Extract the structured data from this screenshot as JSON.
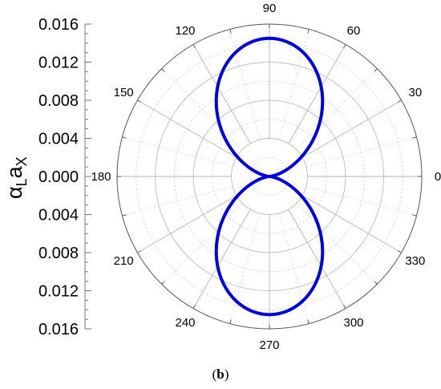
{
  "chart_data": {
    "type": "polar-line",
    "radial_axis": {
      "label_main": "α",
      "label_sub1": "L",
      "label_main2": "a",
      "label_sub2": "X",
      "range": [
        0,
        0.016
      ],
      "ticks": [
        "0.016",
        "0.012",
        "0.008",
        "0.004",
        "0.000",
        "0.004",
        "0.008",
        "0.012",
        "0.016"
      ],
      "grid_circles": [
        0.004,
        0.008,
        0.012,
        0.016
      ],
      "minor_grid_circles": [
        0.002,
        0.006,
        0.01,
        0.014
      ]
    },
    "angular_axis": {
      "unit": "degrees",
      "ticks": [
        "0",
        "30",
        "60",
        "90",
        "120",
        "150",
        "180",
        "210",
        "240",
        "270",
        "300",
        "330"
      ],
      "tick_values": [
        0,
        30,
        60,
        90,
        120,
        150,
        180,
        210,
        240,
        270,
        300,
        330
      ]
    },
    "series": [
      {
        "color": "#0000dd",
        "function": "amplitude * sin(theta)^2",
        "amplitude": 0.0145,
        "theta": [
          0,
          15,
          30,
          45,
          60,
          75,
          90,
          105,
          120,
          135,
          150,
          165,
          180,
          195,
          210,
          225,
          240,
          255,
          270,
          285,
          300,
          315,
          330,
          345,
          360
        ],
        "r": [
          0,
          0.00097,
          0.00363,
          0.00725,
          0.01088,
          0.01353,
          0.0145,
          0.01353,
          0.01088,
          0.00725,
          0.00363,
          0.00097,
          0,
          0.00097,
          0.00363,
          0.00725,
          0.01088,
          0.01353,
          0.0145,
          0.01353,
          0.01088,
          0.00725,
          0.00363,
          0.00097,
          0
        ]
      }
    ],
    "grid": true
  },
  "caption": {
    "open": "(",
    "letter": "b",
    "close": ")"
  }
}
